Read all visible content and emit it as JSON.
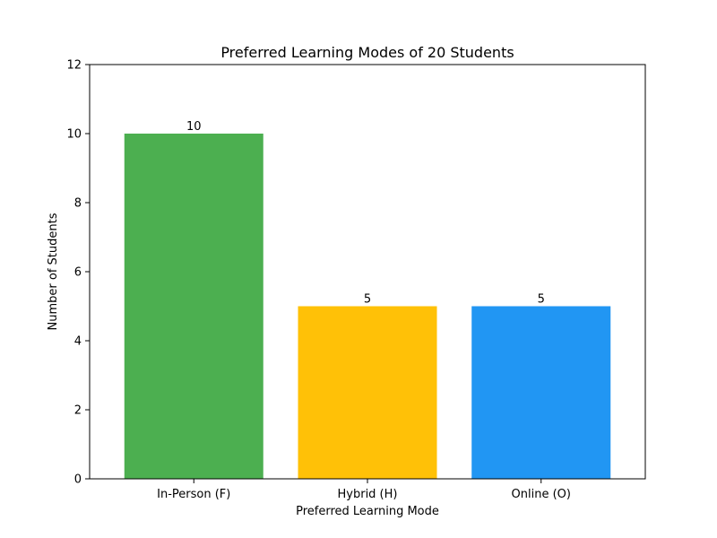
{
  "chart_data": {
    "type": "bar",
    "title": "Preferred Learning Modes of 20 Students",
    "xlabel": "Preferred Learning Mode",
    "ylabel": "Number of Students",
    "categories": [
      "In-Person (F)",
      "Hybrid (H)",
      "Online (O)"
    ],
    "values": [
      10,
      5,
      5
    ],
    "data_labels": [
      "10",
      "5",
      "5"
    ],
    "colors": [
      "#4caf50",
      "#ffc107",
      "#2196f3"
    ],
    "ylim": [
      0,
      12
    ],
    "yticks": [
      0,
      2,
      4,
      6,
      8,
      10,
      12
    ],
    "ytick_labels": [
      "0",
      "2",
      "4",
      "6",
      "8",
      "10",
      "12"
    ],
    "grid": false,
    "legend": false
  }
}
